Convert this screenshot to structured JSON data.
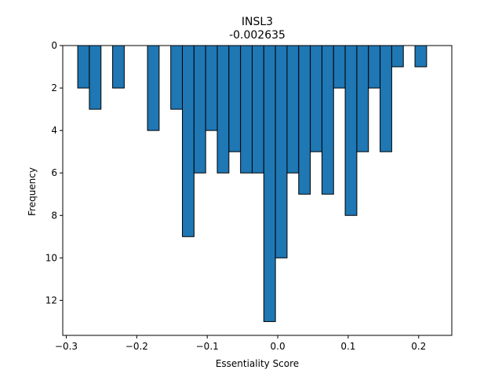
{
  "chart_data": {
    "type": "bar",
    "title": "INSL3",
    "subtitle": "-0.002635",
    "xlabel": "Essentiality Score",
    "ylabel": "Frequency",
    "xlim": [
      -0.305,
      0.247
    ],
    "ylim": [
      13.65,
      0
    ],
    "y_inverted": true,
    "bin_width": 0.0165,
    "xticks": [
      {
        "value": -0.3,
        "label": "−0.3"
      },
      {
        "value": -0.2,
        "label": "−0.2"
      },
      {
        "value": -0.1,
        "label": "−0.1"
      },
      {
        "value": 0.0,
        "label": "0.0"
      },
      {
        "value": 0.1,
        "label": "0.1"
      },
      {
        "value": 0.2,
        "label": "0.2"
      }
    ],
    "yticks": [
      {
        "value": 0,
        "label": "0"
      },
      {
        "value": 2,
        "label": "2"
      },
      {
        "value": 4,
        "label": "4"
      },
      {
        "value": 6,
        "label": "6"
      },
      {
        "value": 8,
        "label": "8"
      },
      {
        "value": 10,
        "label": "10"
      },
      {
        "value": 12,
        "label": "12"
      }
    ],
    "bins": [
      {
        "x": -0.2755,
        "count": 2
      },
      {
        "x": -0.259,
        "count": 3
      },
      {
        "x": -0.226,
        "count": 2
      },
      {
        "x": -0.1765,
        "count": 4
      },
      {
        "x": -0.1435,
        "count": 3
      },
      {
        "x": -0.127,
        "count": 9
      },
      {
        "x": -0.1105,
        "count": 6
      },
      {
        "x": -0.094,
        "count": 4
      },
      {
        "x": -0.0775,
        "count": 6
      },
      {
        "x": -0.061,
        "count": 5
      },
      {
        "x": -0.0445,
        "count": 6
      },
      {
        "x": -0.028,
        "count": 6
      },
      {
        "x": -0.0115,
        "count": 13
      },
      {
        "x": 0.005,
        "count": 10
      },
      {
        "x": 0.0215,
        "count": 6
      },
      {
        "x": 0.038,
        "count": 7
      },
      {
        "x": 0.0545,
        "count": 5
      },
      {
        "x": 0.071,
        "count": 7
      },
      {
        "x": 0.0875,
        "count": 2
      },
      {
        "x": 0.104,
        "count": 8
      },
      {
        "x": 0.1205,
        "count": 5
      },
      {
        "x": 0.137,
        "count": 2
      },
      {
        "x": 0.1535,
        "count": 5
      },
      {
        "x": 0.17,
        "count": 1
      },
      {
        "x": 0.203,
        "count": 1
      }
    ],
    "colors": {
      "bar_fill": "#1f77b4",
      "bar_edge": "#000000"
    },
    "grid": false,
    "legend": "none"
  }
}
